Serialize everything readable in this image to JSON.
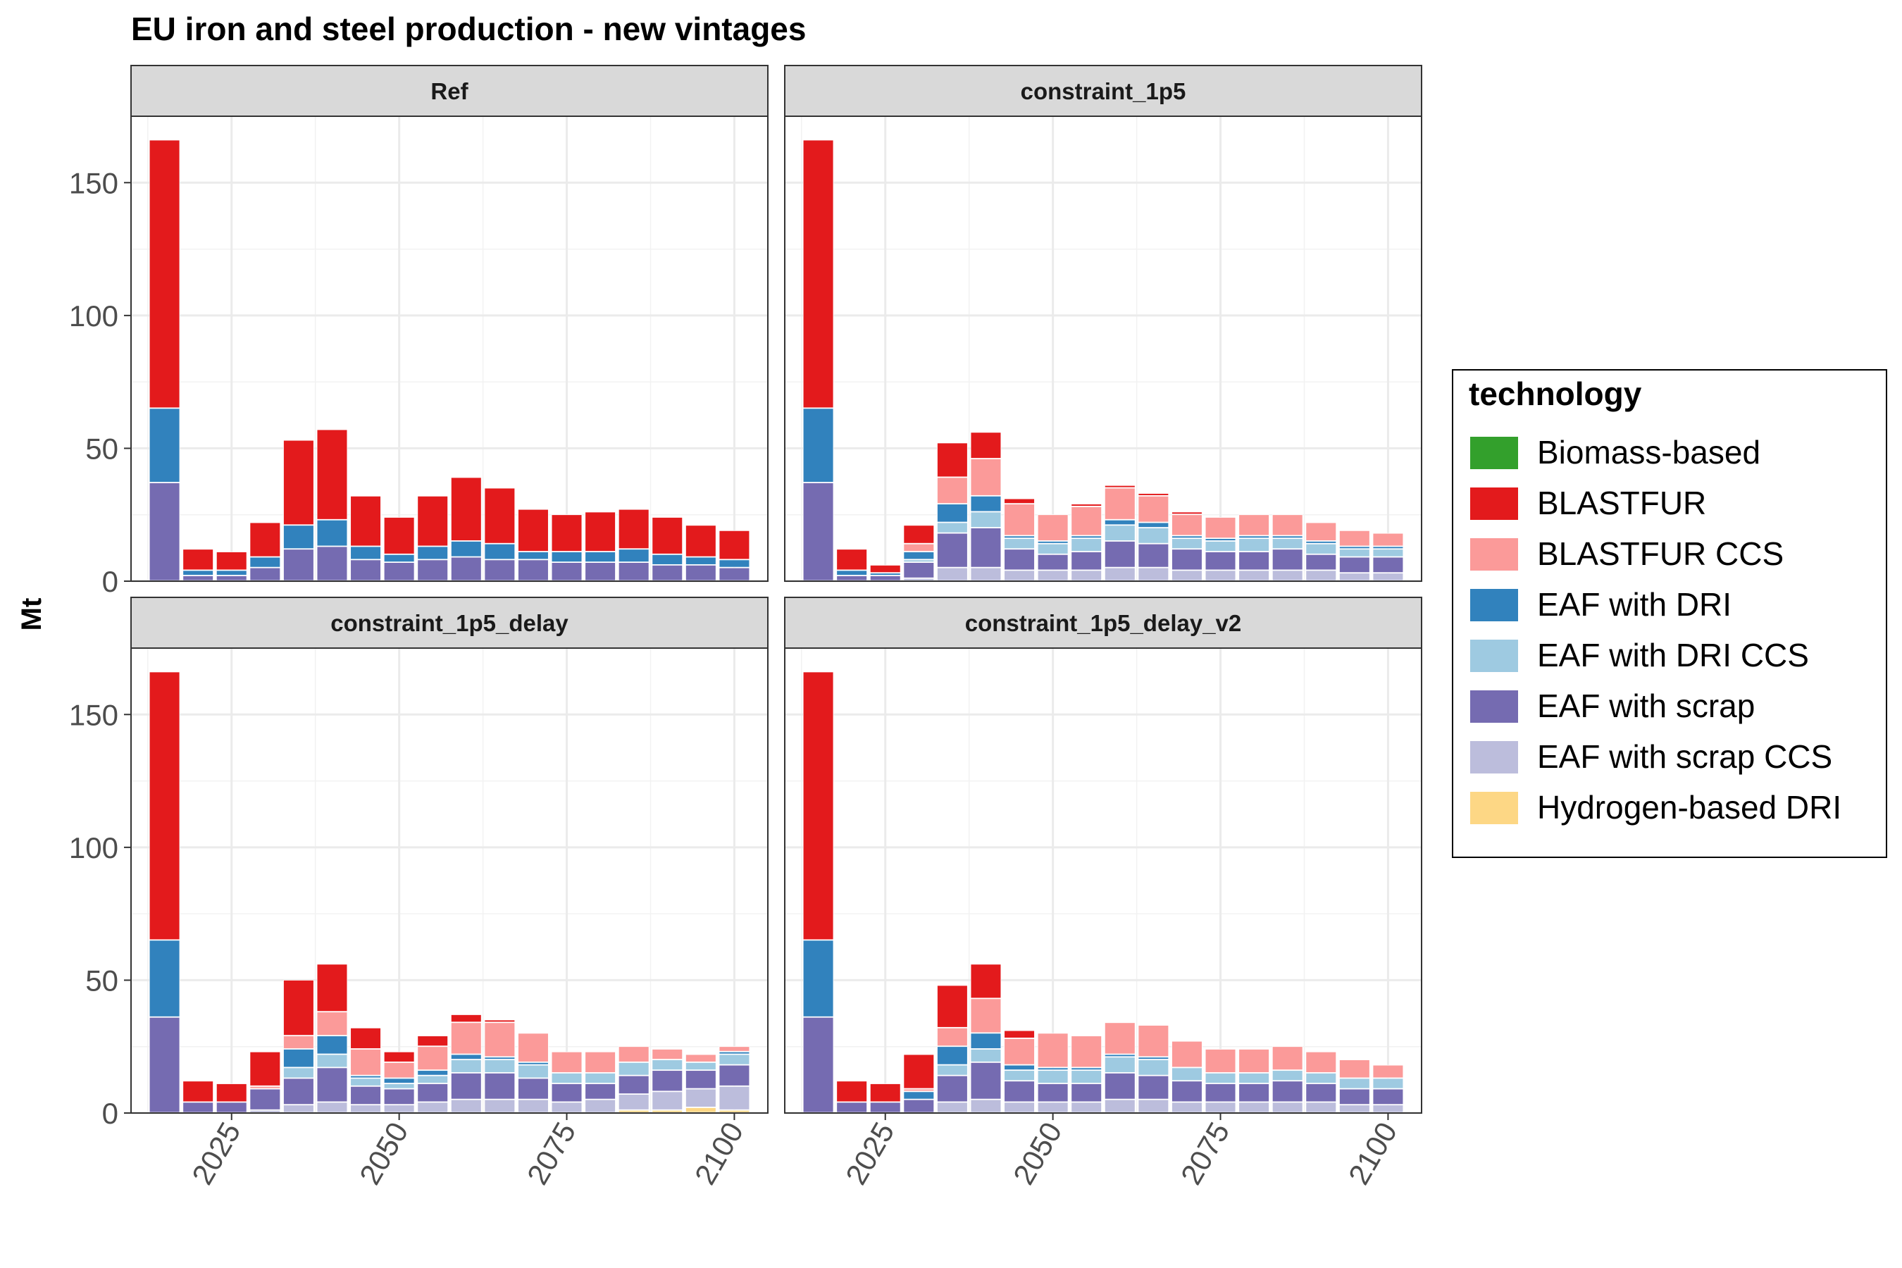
{
  "chart_data": {
    "type": "bar",
    "stacked": true,
    "title": "EU iron and steel production - new vintages",
    "ylabel": "Mt",
    "xlabel": "",
    "ylim": [
      0,
      175
    ],
    "yticks": [
      0,
      50,
      100,
      150
    ],
    "xlim": [
      2010,
      2105
    ],
    "xticks": [
      2025,
      2050,
      2075,
      2100
    ],
    "grid": true,
    "legend": {
      "title": "technology",
      "position": "right",
      "entries": [
        {
          "name": "Biomass-based",
          "color": "#33a02c"
        },
        {
          "name": "BLASTFUR",
          "color": "#e31a1c"
        },
        {
          "name": "BLASTFUR CCS",
          "color": "#fb9a99"
        },
        {
          "name": "EAF with DRI",
          "color": "#3182bd"
        },
        {
          "name": "EAF with DRI CCS",
          "color": "#9ecae1"
        },
        {
          "name": "EAF with scrap",
          "color": "#756bb1"
        },
        {
          "name": "EAF with scrap CCS",
          "color": "#bcbddc"
        },
        {
          "name": "Hydrogen-based DRI",
          "color": "#fdd785"
        }
      ]
    },
    "stack_order": [
      "Hydrogen-based DRI",
      "EAF with scrap CCS",
      "EAF with scrap",
      "EAF with DRI CCS",
      "EAF with DRI",
      "BLASTFUR CCS",
      "BLASTFUR",
      "Biomass-based"
    ],
    "x": [
      2015,
      2020,
      2025,
      2030,
      2035,
      2040,
      2045,
      2050,
      2055,
      2060,
      2065,
      2070,
      2075,
      2080,
      2085,
      2090,
      2095,
      2100
    ],
    "panels": [
      {
        "name": "Ref",
        "series": [
          {
            "name": "EAF with scrap",
            "values": [
              37,
              2,
              2,
              5,
              12,
              13,
              8,
              7,
              8,
              9,
              8,
              8,
              7,
              7,
              7,
              6,
              6,
              5
            ]
          },
          {
            "name": "EAF with DRI",
            "values": [
              28,
              2,
              2,
              4,
              9,
              10,
              5,
              3,
              5,
              6,
              6,
              3,
              4,
              4,
              5,
              4,
              3,
              3
            ]
          },
          {
            "name": "BLASTFUR",
            "values": [
              101,
              8,
              7,
              13,
              32,
              34,
              19,
              14,
              19,
              24,
              21,
              16,
              14,
              15,
              15,
              14,
              12,
              11
            ]
          }
        ]
      },
      {
        "name": "constraint_1p5",
        "series": [
          {
            "name": "EAF with scrap CCS",
            "values": [
              0,
              0,
              0,
              1,
              5,
              5,
              4,
              4,
              4,
              5,
              5,
              4,
              4,
              4,
              4,
              4,
              3,
              3
            ]
          },
          {
            "name": "EAF with scrap",
            "values": [
              37,
              2,
              2,
              6,
              13,
              15,
              8,
              6,
              7,
              10,
              9,
              8,
              7,
              7,
              8,
              6,
              6,
              6
            ]
          },
          {
            "name": "EAF with DRI CCS",
            "values": [
              0,
              0,
              0,
              1,
              4,
              6,
              4,
              4,
              5,
              6,
              6,
              4,
              4,
              5,
              4,
              4,
              3,
              3
            ]
          },
          {
            "name": "EAF with DRI",
            "values": [
              28,
              2,
              1,
              3,
              7,
              6,
              1,
              1,
              1,
              2,
              2,
              1,
              1,
              1,
              1,
              1,
              1,
              1
            ]
          },
          {
            "name": "BLASTFUR CCS",
            "values": [
              0,
              0,
              0,
              3,
              10,
              14,
              12,
              10,
              11,
              12,
              10,
              8,
              8,
              8,
              8,
              7,
              6,
              5
            ]
          },
          {
            "name": "BLASTFUR",
            "values": [
              101,
              8,
              3,
              7,
              13,
              10,
              2,
              0,
              1,
              1,
              1,
              1,
              0,
              0,
              0,
              0,
              0,
              0
            ]
          }
        ]
      },
      {
        "name": "constraint_1p5_delay",
        "series": [
          {
            "name": "Hydrogen-based DRI",
            "values": [
              0,
              0,
              0,
              0,
              0,
              0,
              0,
              0,
              0,
              0,
              0,
              0,
              0,
              0,
              1,
              1,
              2,
              1
            ]
          },
          {
            "name": "EAF with scrap CCS",
            "values": [
              0,
              0,
              0,
              1,
              3,
              4,
              3,
              3,
              4,
              5,
              5,
              5,
              4,
              5,
              6,
              7,
              7,
              9
            ]
          },
          {
            "name": "EAF with scrap",
            "values": [
              36,
              4,
              4,
              8,
              10,
              13,
              7,
              6,
              7,
              10,
              10,
              8,
              7,
              6,
              7,
              8,
              7,
              8
            ]
          },
          {
            "name": "EAF with DRI CCS",
            "values": [
              0,
              0,
              0,
              0,
              4,
              5,
              3,
              2,
              3,
              5,
              5,
              5,
              4,
              4,
              5,
              4,
              3,
              4
            ]
          },
          {
            "name": "EAF with DRI",
            "values": [
              29,
              0,
              0,
              0,
              7,
              7,
              1,
              2,
              2,
              2,
              1,
              1,
              0,
              0,
              0,
              0,
              0,
              1
            ]
          },
          {
            "name": "BLASTFUR CCS",
            "values": [
              0,
              0,
              0,
              1,
              5,
              9,
              10,
              6,
              9,
              12,
              13,
              11,
              8,
              8,
              6,
              4,
              3,
              2
            ]
          },
          {
            "name": "BLASTFUR",
            "values": [
              101,
              8,
              7,
              13,
              21,
              18,
              8,
              4,
              4,
              3,
              1,
              0,
              0,
              0,
              0,
              0,
              0,
              0
            ]
          }
        ]
      },
      {
        "name": "constraint_1p5_delay_v2",
        "series": [
          {
            "name": "EAF with scrap CCS",
            "values": [
              0,
              0,
              0,
              0,
              4,
              5,
              4,
              4,
              4,
              5,
              5,
              4,
              4,
              4,
              4,
              4,
              3,
              3
            ]
          },
          {
            "name": "EAF with scrap",
            "values": [
              36,
              4,
              4,
              5,
              10,
              14,
              8,
              7,
              7,
              10,
              9,
              8,
              7,
              7,
              8,
              7,
              6,
              6
            ]
          },
          {
            "name": "EAF with DRI CCS",
            "values": [
              0,
              0,
              0,
              0,
              4,
              5,
              4,
              5,
              5,
              6,
              6,
              5,
              4,
              4,
              4,
              4,
              4,
              4
            ]
          },
          {
            "name": "EAF with DRI",
            "values": [
              29,
              0,
              0,
              3,
              7,
              6,
              2,
              1,
              1,
              1,
              1,
              0,
              0,
              0,
              0,
              0,
              0,
              0
            ]
          },
          {
            "name": "BLASTFUR CCS",
            "values": [
              0,
              0,
              0,
              1,
              7,
              13,
              10,
              13,
              12,
              12,
              12,
              10,
              9,
              9,
              9,
              8,
              7,
              5
            ]
          },
          {
            "name": "BLASTFUR",
            "values": [
              101,
              8,
              7,
              13,
              16,
              13,
              3,
              0,
              0,
              0,
              0,
              0,
              0,
              0,
              0,
              0,
              0,
              0
            ]
          }
        ]
      }
    ]
  }
}
